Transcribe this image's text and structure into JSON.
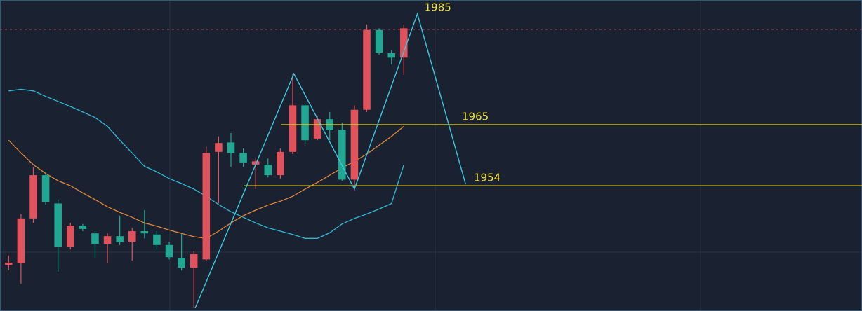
{
  "chart_data": {
    "type": "candlestick",
    "categories": [
      null,
      null,
      null,
      null,
      null,
      null,
      null,
      null,
      null,
      null,
      null,
      null,
      null,
      null,
      null,
      null,
      null,
      null,
      null,
      null,
      null,
      null,
      null,
      null,
      null,
      null,
      null,
      null,
      null,
      null,
      null,
      null,
      null
    ],
    "open": [
      1939.7,
      1940.0,
      1948.1,
      1955.9,
      1950.8,
      1943.0,
      1946.8,
      1945.4,
      1943.5,
      1944.9,
      1943.9,
      1945.8,
      1945.2,
      1943.3,
      1941.0,
      1939.2,
      1940.7,
      1960.1,
      1961.8,
      1959.9,
      1957.8,
      1957.8,
      1955.9,
      1960.1,
      1968.5,
      1962.5,
      1966.0,
      1964.1,
      1955.1,
      1967.7,
      1982.1,
      1977.9,
      1977.1
    ],
    "high": [
      1941.4,
      1948.9,
      1957.4,
      1956.5,
      1951.5,
      1947.3,
      1947.1,
      1945.8,
      1945.4,
      1948.6,
      1946.4,
      1949.6,
      1945.8,
      1943.9,
      1945.4,
      1942.2,
      1961.0,
      1962.9,
      1963.5,
      1960.7,
      1959.1,
      1958.9,
      1960.7,
      1974.2,
      1968.8,
      1966.6,
      1967.3,
      1965.4,
      1968.5,
      1983.1,
      1982.4,
      1978.4,
      1983.1
    ],
    "low": [
      1938.8,
      1936.3,
      1947.3,
      1950.6,
      1938.5,
      1942.5,
      1945.8,
      1941.0,
      1940.0,
      1943.3,
      1940.5,
      1944.5,
      1942.5,
      1940.7,
      1938.7,
      1931.9,
      1940.5,
      1950.8,
      1957.4,
      1957.4,
      1953.4,
      1955.5,
      1955.3,
      1959.7,
      1961.6,
      1962.2,
      1962.2,
      1954.9,
      1953.1,
      1967.3,
      1977.6,
      1975.9,
      1974.0
    ],
    "close": [
      1940.1,
      1948.1,
      1955.9,
      1951.1,
      1943.0,
      1946.8,
      1946.2,
      1943.5,
      1944.9,
      1943.8,
      1945.8,
      1945.4,
      1943.3,
      1941.1,
      1939.2,
      1941.7,
      1959.9,
      1961.7,
      1959.9,
      1958.2,
      1958.4,
      1955.9,
      1960.1,
      1968.5,
      1962.2,
      1966.0,
      1964.0,
      1955.1,
      1967.7,
      1982.1,
      1978.0,
      1977.1,
      1982.4
    ],
    "up_color": "#e0525c",
    "down_color": "#22a892",
    "series": [
      {
        "color": "#31b8d0",
        "values": [
          1971.1,
          1971.4,
          1971.1,
          1970.1,
          1969.2,
          1968.3,
          1967.3,
          1966.3,
          1964.7,
          1962.2,
          1959.9,
          1957.5,
          1956.5,
          1955.3,
          1954.4,
          1953.4,
          1952.1,
          1950.6,
          1949.3,
          1948.3,
          1947.3,
          1946.4,
          1945.8,
          1945.2,
          1944.5,
          1944.5,
          1945.5,
          1947.1,
          1948.1,
          1948.9,
          1949.8,
          1950.8,
          1957.8
        ]
      },
      {
        "color": "#e0873a",
        "values": [
          1962.2,
          1959.9,
          1957.8,
          1956.2,
          1954.9,
          1954.0,
          1952.7,
          1951.5,
          1950.2,
          1949.2,
          1948.3,
          1947.3,
          1946.7,
          1946.0,
          1945.4,
          1944.8,
          1944.5,
          1945.8,
          1947.3,
          1948.6,
          1949.6,
          1950.5,
          1951.2,
          1952.1,
          1953.4,
          1954.6,
          1955.9,
          1957.2,
          1958.4,
          1959.7,
          1961.3,
          1962.9,
          1964.7
        ]
      }
    ],
    "zigzag": {
      "color": "#3cc8e0",
      "x": [
        15.1,
        23.1,
        28.0,
        33.1,
        37.0
      ],
      "values": [
        1931.9,
        1974.2,
        1953.4,
        1985.0,
        1954.3
      ]
    },
    "annotation": {
      "value": 1985,
      "label": "1985"
    },
    "hlines": [
      {
        "value": 1965,
        "label": "1965",
        "color": "#e6d63c"
      },
      {
        "value": 1954,
        "label": "1954",
        "color": "#e6d63c"
      }
    ],
    "ref_line": {
      "value": 1982.2,
      "color": "#b04850"
    },
    "xlim": [
      -0.7,
      69.1
    ],
    "ylim": [
      1931.4,
      1987.5
    ]
  }
}
